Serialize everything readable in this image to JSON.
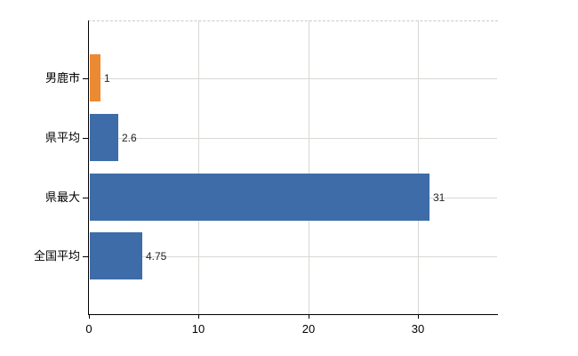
{
  "chart_data": {
    "type": "bar",
    "orientation": "horizontal",
    "title": "",
    "categories": [
      "男鹿市",
      "県平均",
      "県最大",
      "全国平均"
    ],
    "values": [
      1,
      2.6,
      31,
      4.75
    ],
    "value_labels": [
      "1",
      "2.6",
      "31",
      "4.75"
    ],
    "bar_colors": [
      "#ec8a33",
      "#3e6ca9",
      "#3e6ca9",
      "#3e6ca9"
    ],
    "highlighted_category": "男鹿市",
    "x_ticks": [
      0,
      10,
      20,
      30
    ],
    "x_tick_labels": [
      "0",
      "10",
      "20",
      "30"
    ],
    "xlim": [
      0,
      37.3
    ],
    "xlabel": "",
    "ylabel": "",
    "grid": "on",
    "legend_position": "none",
    "value_label_position": "outside-end"
  },
  "colors": {
    "background": "#ffffff",
    "bar_default": "#3e6ca9",
    "bar_highlight": "#ec8a33",
    "gridline": "#d6dad3",
    "plot_top_border": "#c8ccc6",
    "axis": "#000000",
    "category_text": "#000000",
    "value_text": "#222222"
  }
}
